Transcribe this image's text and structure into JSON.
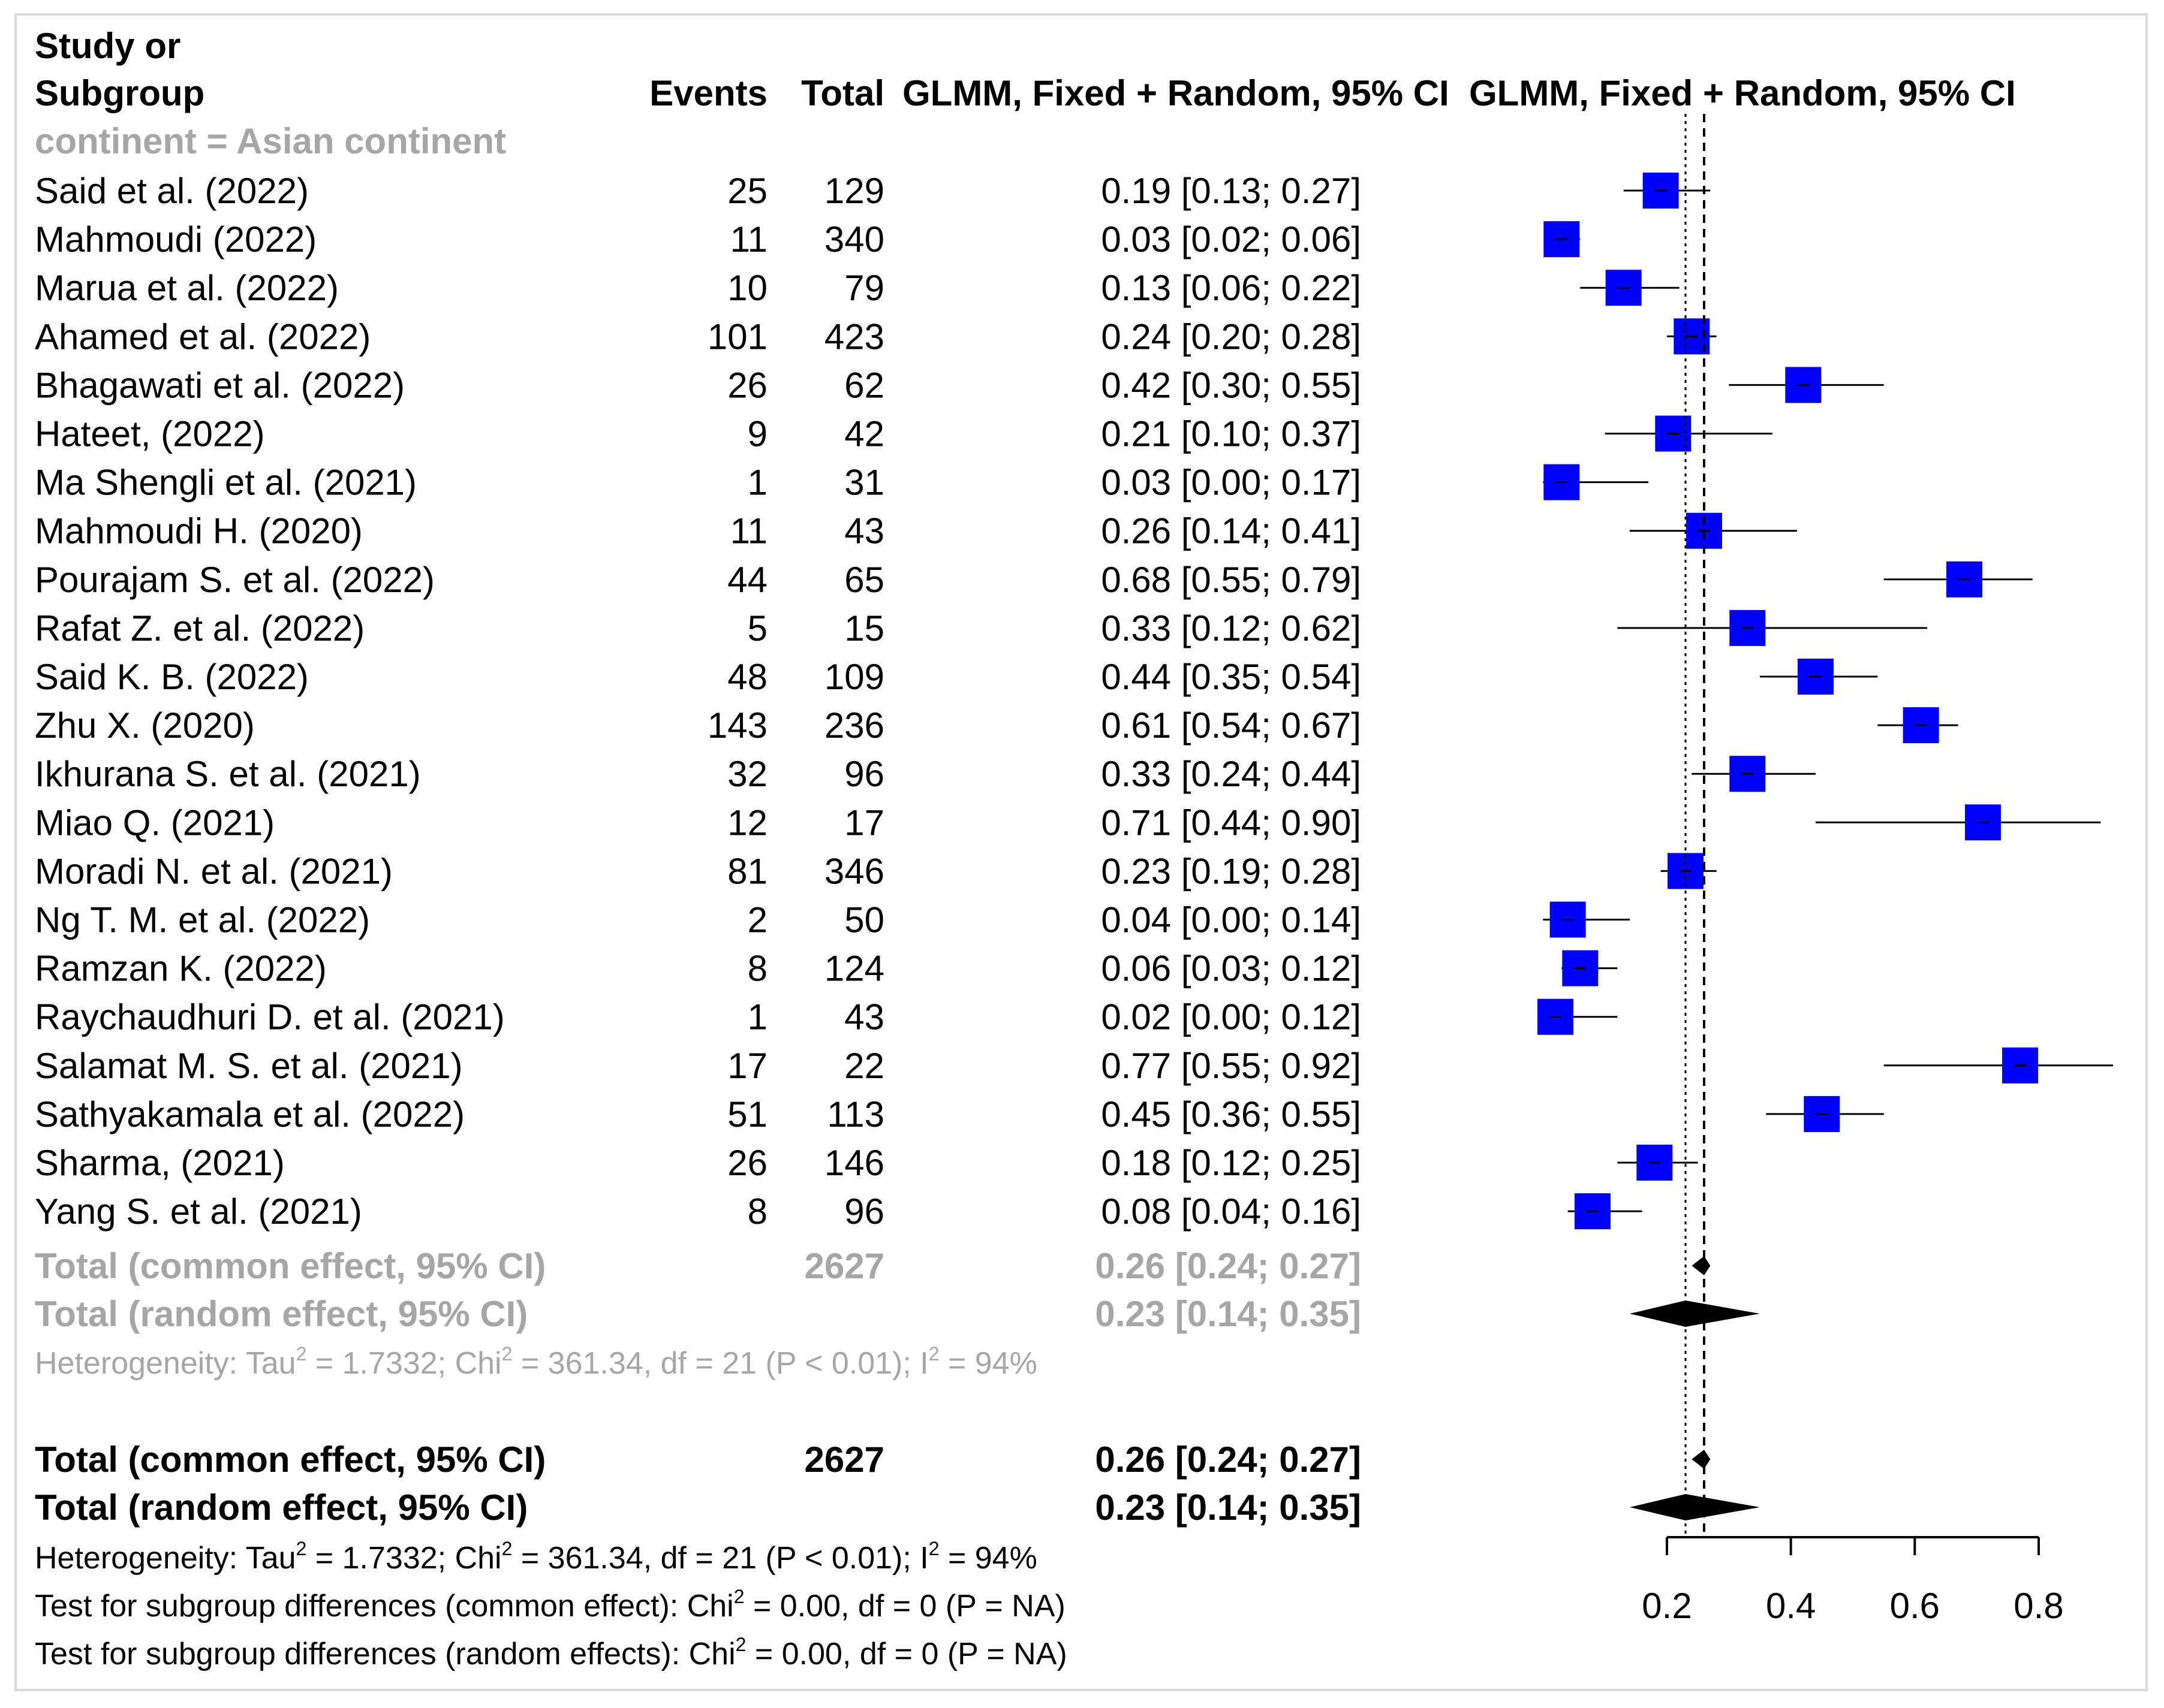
{
  "chart_data": {
    "type": "forest",
    "headers": {
      "study_line1": "Study or",
      "study_line2": "Subgroup",
      "events": "Events",
      "total": "Total",
      "estimate": "GLMM, Fixed + Random, 95% CI",
      "plot": "GLMM, Fixed + Random, 95% CI"
    },
    "subgroup_label": "continent = Asian continent",
    "studies": [
      {
        "name": "Said et al. (2022)",
        "events": "25",
        "total": "129",
        "est": 0.19,
        "lo": 0.13,
        "hi": 0.27,
        "text": "0.19 [0.13; 0.27]"
      },
      {
        "name": "Mahmoudi (2022)",
        "events": "11",
        "total": "340",
        "est": 0.03,
        "lo": 0.02,
        "hi": 0.06,
        "text": "0.03 [0.02; 0.06]"
      },
      {
        "name": "Marua et al. (2022)",
        "events": "10",
        "total": "79",
        "est": 0.13,
        "lo": 0.06,
        "hi": 0.22,
        "text": "0.13 [0.06; 0.22]"
      },
      {
        "name": "Ahamed et al. (2022)",
        "events": "101",
        "total": "423",
        "est": 0.24,
        "lo": 0.2,
        "hi": 0.28,
        "text": "0.24 [0.20; 0.28]"
      },
      {
        "name": "Bhagawati et al. (2022)",
        "events": "26",
        "total": "62",
        "est": 0.42,
        "lo": 0.3,
        "hi": 0.55,
        "text": "0.42 [0.30; 0.55]"
      },
      {
        "name": "Hateet, (2022)",
        "events": "9",
        "total": "42",
        "est": 0.21,
        "lo": 0.1,
        "hi": 0.37,
        "text": "0.21 [0.10; 0.37]"
      },
      {
        "name": "Ma Shengli et al. (2021)",
        "events": "1",
        "total": "31",
        "est": 0.03,
        "lo": 0.0,
        "hi": 0.17,
        "text": "0.03 [0.00; 0.17]"
      },
      {
        "name": "Mahmoudi H. (2020)",
        "events": "11",
        "total": "43",
        "est": 0.26,
        "lo": 0.14,
        "hi": 0.41,
        "text": "0.26 [0.14; 0.41]"
      },
      {
        "name": "Pourajam S. et al. (2022)",
        "events": "44",
        "total": "65",
        "est": 0.68,
        "lo": 0.55,
        "hi": 0.79,
        "text": "0.68 [0.55; 0.79]"
      },
      {
        "name": "Rafat Z. et al. (2022)",
        "events": "5",
        "total": "15",
        "est": 0.33,
        "lo": 0.12,
        "hi": 0.62,
        "text": "0.33 [0.12; 0.62]"
      },
      {
        "name": "Said K. B. (2022)",
        "events": "48",
        "total": "109",
        "est": 0.44,
        "lo": 0.35,
        "hi": 0.54,
        "text": "0.44 [0.35; 0.54]"
      },
      {
        "name": "Zhu X. (2020)",
        "events": "143",
        "total": "236",
        "est": 0.61,
        "lo": 0.54,
        "hi": 0.67,
        "text": "0.61 [0.54; 0.67]"
      },
      {
        "name": "Ikhurana S. et al. (2021)",
        "events": "32",
        "total": "96",
        "est": 0.33,
        "lo": 0.24,
        "hi": 0.44,
        "text": "0.33 [0.24; 0.44]"
      },
      {
        "name": "Miao Q. (2021)",
        "events": "12",
        "total": "17",
        "est": 0.71,
        "lo": 0.44,
        "hi": 0.9,
        "text": "0.71 [0.44; 0.90]"
      },
      {
        "name": "Moradi N. et al. (2021)",
        "events": "81",
        "total": "346",
        "est": 0.23,
        "lo": 0.19,
        "hi": 0.28,
        "text": "0.23 [0.19; 0.28]"
      },
      {
        "name": "Ng T. M. et al. (2022)",
        "events": "2",
        "total": "50",
        "est": 0.04,
        "lo": 0.0,
        "hi": 0.14,
        "text": "0.04 [0.00; 0.14]"
      },
      {
        "name": "Ramzan K. (2022)",
        "events": "8",
        "total": "124",
        "est": 0.06,
        "lo": 0.03,
        "hi": 0.12,
        "text": "0.06 [0.03; 0.12]"
      },
      {
        "name": "Raychaudhuri D. et al. (2021)",
        "events": "1",
        "total": "43",
        "est": 0.02,
        "lo": 0.0,
        "hi": 0.12,
        "text": "0.02 [0.00; 0.12]"
      },
      {
        "name": "Salamat M. S. et al. (2021)",
        "events": "17",
        "total": "22",
        "est": 0.77,
        "lo": 0.55,
        "hi": 0.92,
        "text": "0.77 [0.55; 0.92]"
      },
      {
        "name": "Sathyakamala et al. (2022)",
        "events": "51",
        "total": "113",
        "est": 0.45,
        "lo": 0.36,
        "hi": 0.55,
        "text": "0.45 [0.36; 0.55]"
      },
      {
        "name": "Sharma, (2021)",
        "events": "26",
        "total": "146",
        "est": 0.18,
        "lo": 0.12,
        "hi": 0.25,
        "text": "0.18 [0.12; 0.25]"
      },
      {
        "name": "Yang S. et al. (2021)",
        "events": "8",
        "total": "96",
        "est": 0.08,
        "lo": 0.04,
        "hi": 0.16,
        "text": "0.08 [0.04; 0.16]"
      }
    ],
    "subgroup_summary": {
      "common": {
        "label": "Total (common effect, 95% CI)",
        "total": "2627",
        "est": 0.26,
        "lo": 0.24,
        "hi": 0.27,
        "text": "0.26 [0.24; 0.27]"
      },
      "random": {
        "label": "Total (random effect, 95% CI)",
        "est": 0.23,
        "lo": 0.14,
        "hi": 0.35,
        "text": "0.23 [0.14; 0.35]"
      },
      "heterogeneity": [
        "Heterogeneity: Tau",
        "2",
        " = 1.7332; Chi",
        "2",
        " = 361.34, df = 21 (P < 0.01); I",
        "2",
        " = 94%"
      ]
    },
    "overall_summary": {
      "common": {
        "label": "Total (common effect, 95% CI)",
        "total": "2627",
        "est": 0.26,
        "lo": 0.24,
        "hi": 0.27,
        "text": "0.26 [0.24; 0.27]"
      },
      "random": {
        "label": "Total (random effect, 95% CI)",
        "est": 0.23,
        "lo": 0.14,
        "hi": 0.35,
        "text": "0.23 [0.14; 0.35]"
      },
      "heterogeneity": [
        "Heterogeneity: Tau",
        "2",
        " = 1.7332; Chi",
        "2",
        " = 361.34, df = 21 (P < 0.01); I",
        "2",
        " = 94%"
      ],
      "test_common": [
        "Test for subgroup differences (common effect): Chi",
        "2",
        " = 0.00, df = 0 (P = NA)"
      ],
      "test_random": [
        "Test for subgroup differences (random effects): Chi",
        "2",
        " = 0.00, df = 0 (P = NA)"
      ]
    },
    "x_axis": {
      "ticks": [
        0.2,
        0.4,
        0.6,
        0.8
      ],
      "tick_labels": [
        "0.2",
        "0.4",
        "0.6",
        "0.8"
      ],
      "xlim": [
        0.2,
        0.8
      ]
    },
    "reference_lines": {
      "common": 0.26,
      "random": 0.23
    },
    "colors": {
      "square": "#0000ff",
      "subgroup_text": "#a6a6a6",
      "text": "#000000",
      "diamond": "#000000"
    }
  }
}
